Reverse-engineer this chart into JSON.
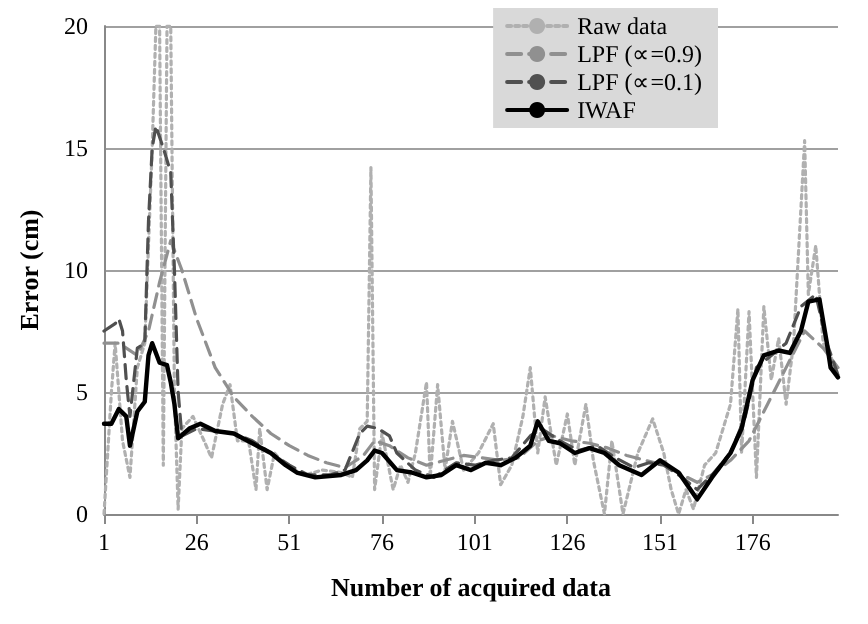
{
  "chart_data": {
    "type": "line",
    "xlabel": "Number of acquired data",
    "ylabel": "Error (cm)",
    "xlim": [
      1,
      199
    ],
    "xticks": [
      1,
      26,
      51,
      76,
      101,
      126,
      151,
      176
    ],
    "ylim": [
      0,
      20
    ],
    "yticks": [
      0,
      5,
      10,
      15,
      20
    ],
    "grid": "y",
    "legend": "top right",
    "marker": "none",
    "series": [
      {
        "name": "Raw data",
        "color": "#b0b0b0",
        "line_style": "dotted",
        "x": [
          1,
          3,
          4,
          6,
          8,
          10,
          12,
          14,
          15,
          16,
          17,
          18,
          19,
          20,
          21,
          22,
          25,
          28,
          30,
          33,
          35,
          37,
          40,
          42,
          43,
          45,
          47,
          50,
          55,
          60,
          65,
          68,
          70,
          72,
          73,
          74,
          76,
          79,
          81,
          83,
          85,
          88,
          89,
          91,
          93,
          95,
          98,
          102,
          106,
          108,
          111,
          114,
          116,
          118,
          120,
          123,
          126,
          128,
          131,
          133,
          136,
          138,
          141,
          145,
          149,
          152,
          154,
          156,
          158,
          160,
          163,
          166,
          170,
          172,
          173,
          175,
          177,
          179,
          181,
          183,
          185,
          187,
          190,
          191,
          193,
          195,
          197,
          199
        ],
        "values": [
          0,
          5,
          7,
          3,
          1.5,
          6,
          7,
          15,
          20,
          20,
          2,
          20,
          20,
          5,
          0.2,
          3.5,
          4,
          3,
          2.3,
          4.5,
          5.3,
          3,
          3,
          1,
          3.5,
          1,
          2.5,
          2,
          1.6,
          1.8,
          1.7,
          1.5,
          3.5,
          3.8,
          14.2,
          1,
          3.3,
          1,
          2,
          1.3,
          2.5,
          5.4,
          1.5,
          5.3,
          1.8,
          3.8,
          1.8,
          2.5,
          3.7,
          1.2,
          2,
          4,
          6,
          2.5,
          4.8,
          2,
          4.1,
          2,
          4.5,
          2.2,
          0,
          3,
          0,
          2.5,
          3.9,
          2.5,
          1,
          0,
          1,
          0.2,
          2,
          2.5,
          4.5,
          8.4,
          2.5,
          8.3,
          1.5,
          8.5,
          5.5,
          7.2,
          4.5,
          7,
          15.3,
          9,
          11,
          7,
          6.5,
          5.5
        ]
      },
      {
        "name": "LPF (∝=0.9)",
        "color": "#909090",
        "line_style": "dashed",
        "x": [
          1,
          5,
          10,
          13,
          16,
          19,
          22,
          26,
          31,
          36,
          41,
          46,
          51,
          56,
          61,
          66,
          71,
          74,
          78,
          83,
          88,
          93,
          98,
          103,
          108,
          113,
          118,
          122,
          127,
          132,
          137,
          142,
          147,
          152,
          157,
          161,
          165,
          170,
          175,
          180,
          185,
          190,
          195,
          199
        ],
        "values": [
          7,
          7,
          6.5,
          7.5,
          9.5,
          11.2,
          10,
          8,
          6,
          4.8,
          4,
          3.3,
          2.8,
          2.4,
          2.1,
          1.9,
          2.4,
          3,
          2.8,
          2.3,
          2,
          2.2,
          2.4,
          2.3,
          2.2,
          2.3,
          3,
          3.2,
          3,
          2.9,
          2.7,
          2.4,
          2.2,
          2,
          1.6,
          1.3,
          1.6,
          2.2,
          3,
          4.5,
          6,
          7.5,
          6.8,
          6
        ]
      },
      {
        "name": "LPF (∝=0.1)",
        "color": "#505050",
        "line_style": "dashed",
        "x": [
          1,
          4,
          5,
          6,
          7,
          8,
          10,
          12,
          13,
          14,
          15,
          17,
          19,
          20,
          21,
          22,
          26,
          31,
          36,
          41,
          46,
          51,
          56,
          62,
          66,
          70,
          72,
          75,
          78,
          80,
          85,
          90,
          96,
          101,
          106,
          111,
          116,
          119,
          124,
          129,
          134,
          139,
          144,
          148,
          152,
          157,
          161,
          165,
          170,
          174,
          177,
          181,
          185,
          189,
          193,
          196,
          199
        ],
        "values": [
          7.5,
          7.8,
          8,
          7.5,
          5.5,
          4,
          6.8,
          7,
          12,
          15,
          15.9,
          15,
          14,
          10,
          5,
          3.2,
          3.5,
          3.4,
          3.3,
          3,
          2.5,
          2,
          1.6,
          1.6,
          1.8,
          3.3,
          3.6,
          3.5,
          3.2,
          2.5,
          1.8,
          1.5,
          2.1,
          2,
          2.2,
          2.3,
          3.2,
          3.5,
          3,
          2.6,
          2.8,
          2.3,
          1.9,
          2.1,
          2,
          1.5,
          1,
          1.6,
          2.5,
          4,
          6,
          6.5,
          7,
          8.5,
          9,
          7,
          5.7
        ]
      },
      {
        "name": "IWAF",
        "color": "#000000",
        "line_style": "solid",
        "x": [
          1,
          3,
          5,
          7,
          8,
          10,
          12,
          13,
          14,
          16,
          18,
          19,
          20,
          21,
          24,
          27,
          31,
          36,
          41,
          46,
          50,
          53,
          58,
          65,
          69,
          72,
          74,
          76,
          80,
          84,
          88,
          92,
          96,
          100,
          104,
          108,
          112,
          116,
          118,
          121,
          124,
          128,
          132,
          136,
          140,
          146,
          151,
          156,
          161,
          165,
          170,
          173,
          176,
          179,
          183,
          186,
          189,
          191,
          194,
          196,
          197,
          199
        ],
        "values": [
          3.7,
          3.7,
          4.3,
          4,
          2.8,
          4.2,
          4.6,
          6.5,
          7,
          6.2,
          6.1,
          5.4,
          4.5,
          3.1,
          3.5,
          3.7,
          3.4,
          3.3,
          2.9,
          2.5,
          2,
          1.7,
          1.5,
          1.6,
          1.8,
          2.2,
          2.6,
          2.5,
          1.8,
          1.7,
          1.5,
          1.6,
          2,
          1.8,
          2.1,
          2,
          2.3,
          2.8,
          3.8,
          3,
          2.9,
          2.5,
          2.7,
          2.5,
          2,
          1.6,
          2.2,
          1.7,
          0.6,
          1.5,
          2.5,
          3.5,
          5.5,
          6.5,
          6.7,
          6.6,
          7.5,
          8.7,
          8.8,
          7,
          6,
          5.6
        ]
      }
    ]
  }
}
